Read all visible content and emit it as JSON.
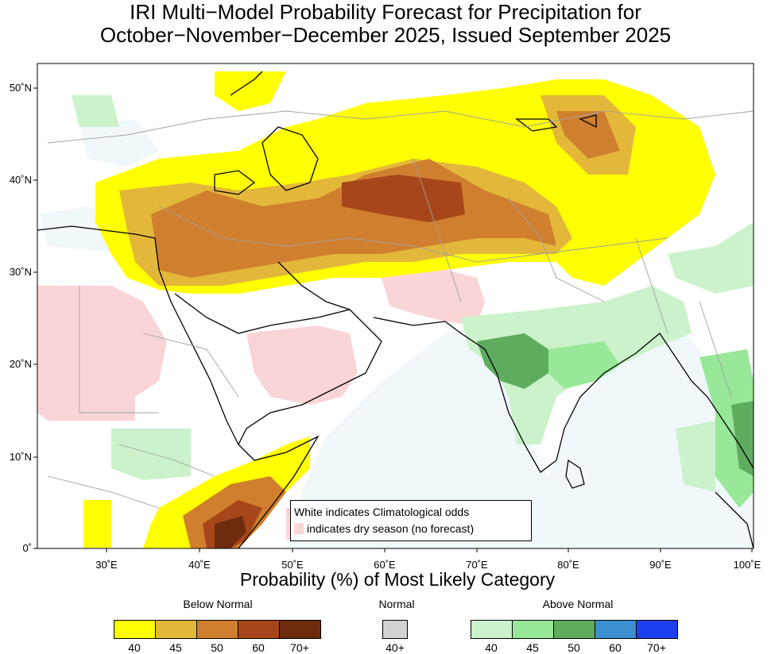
{
  "title": {
    "line1": "IRI Multi−Model Probability Forecast for Precipitation for",
    "line2": "October−November−December 2025, Issued September 2025"
  },
  "map": {
    "lon_range": [
      23,
      100
    ],
    "lat_range": [
      0,
      52.5
    ],
    "lat_ticks": [
      "50˚N",
      "40˚N",
      "30˚N",
      "20˚N",
      "10˚N",
      "0˚"
    ],
    "lon_ticks": [
      "30˚E",
      "40˚E",
      "50˚E",
      "60˚E",
      "70˚E",
      "80˚E",
      "90˚E",
      "100˚E"
    ]
  },
  "legend_box": {
    "line1": "White indicates Climatological odds",
    "line2": "indicates dry season (no forecast)"
  },
  "colorbar": {
    "title": "Probability (%) of Most Likely Category",
    "below_normal": {
      "label": "Below Normal",
      "colors": [
        "#ffff00",
        "#e3b83a",
        "#d07f2e",
        "#a8461b",
        "#6e2b0e"
      ],
      "ticks": [
        "40",
        "45",
        "50",
        "60",
        "70+"
      ]
    },
    "normal": {
      "label": "Normal",
      "colors": [
        "#d2d2d2"
      ],
      "ticks": [
        "40+"
      ]
    },
    "above_normal": {
      "label": "Above Normal",
      "colors": [
        "#cbf2cb",
        "#99e899",
        "#5fac5f",
        "#3c8fd0",
        "#1e3ff0"
      ],
      "ticks": [
        "40",
        "45",
        "50",
        "60",
        "70+"
      ]
    }
  },
  "colors": {
    "dry_season": "#f9d5d8",
    "ocean_climatology": "#f0f8fc",
    "coastline": "#000000",
    "borders": "#a0a0a0"
  }
}
